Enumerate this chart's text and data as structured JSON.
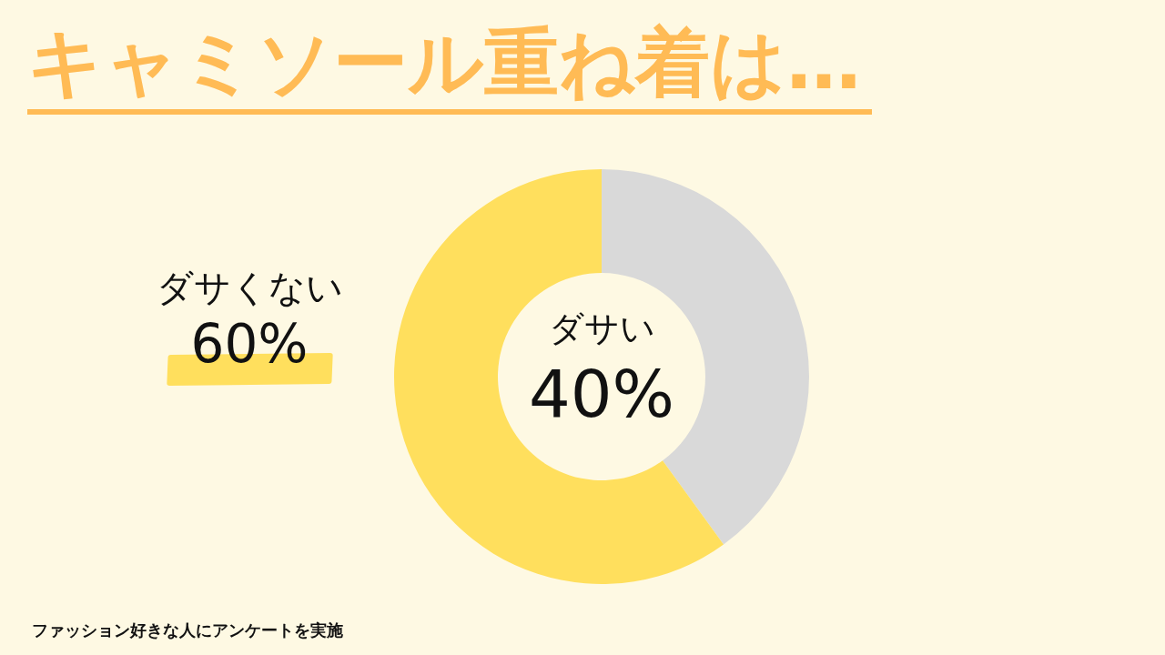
{
  "chart_data": {
    "type": "donut",
    "title": "キャミソール重ね着は…",
    "categories": [
      "ダサい",
      "ダサくない"
    ],
    "values": [
      40,
      60
    ],
    "colors": [
      "#d9d9d9",
      "#ffdf5d"
    ],
    "value_labels": [
      "40%",
      "60%"
    ],
    "annotations": [
      "ファッション好きな人にアンケートを実施"
    ]
  }
}
